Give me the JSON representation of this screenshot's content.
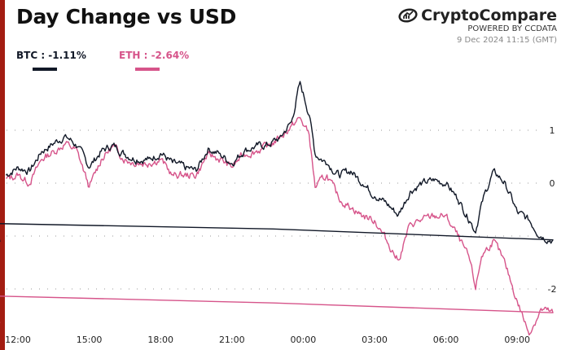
{
  "title": "Day Change vs USD",
  "brand": {
    "name": "CryptoCompare",
    "sub": "POWERED BY CCDATA",
    "date": "9 Dec 2024 11:15 (GMT)",
    "logo_icon": "chart-in-oval-icon"
  },
  "colors": {
    "accent": "#a31d12",
    "btc": "#111827",
    "eth": "#d6548a"
  },
  "legend": [
    {
      "label": "BTC : -1.11%",
      "color": "#111827"
    },
    {
      "label": "ETH : -2.64%",
      "color": "#d6548a"
    }
  ],
  "chart_data": {
    "type": "line",
    "xlabel": "",
    "ylabel": "",
    "x_ticks": [
      "12:00",
      "15:00",
      "18:00",
      "21:00",
      "00:00",
      "03:00",
      "06:00",
      "09:00"
    ],
    "y_ticks": [
      1,
      0,
      -1,
      -2
    ],
    "y_tick_labels": [
      "1",
      "0",
      "",
      "-2"
    ],
    "ylim": [
      -3,
      2
    ],
    "grid": "horizontal dotted",
    "y_axis_position": "right",
    "x": [
      "11:30",
      "12:00",
      "12:30",
      "13:00",
      "13:30",
      "14:00",
      "14:30",
      "15:00",
      "15:30",
      "16:00",
      "16:30",
      "17:00",
      "17:30",
      "18:00",
      "18:30",
      "19:00",
      "19:30",
      "20:00",
      "20:30",
      "21:00",
      "21:30",
      "22:00",
      "22:30",
      "23:00",
      "23:30",
      "23:52",
      "00:15",
      "00:30",
      "01:00",
      "01:30",
      "02:00",
      "02:30",
      "03:00",
      "03:30",
      "04:00",
      "04:30",
      "05:00",
      "05:30",
      "06:00",
      "06:30",
      "07:00",
      "07:15",
      "07:30",
      "08:00",
      "08:30",
      "09:00",
      "09:30",
      "10:00",
      "10:30",
      "11:00",
      "11:15"
    ],
    "series": [
      {
        "name": "BTC",
        "values": [
          0.15,
          0.3,
          0.23,
          0.6,
          0.75,
          0.9,
          0.7,
          0.3,
          0.6,
          0.72,
          0.55,
          0.45,
          0.45,
          0.57,
          0.38,
          0.3,
          0.23,
          0.66,
          0.55,
          0.38,
          0.6,
          0.7,
          0.72,
          0.85,
          1.15,
          1.9,
          1.3,
          0.55,
          0.38,
          0.15,
          0.23,
          0,
          -0.23,
          -0.38,
          -0.6,
          -0.15,
          0,
          0.05,
          0,
          -0.3,
          -0.7,
          -0.92,
          -0.38,
          0.23,
          0,
          -0.55,
          -0.7,
          -1.0,
          -1.08,
          -0.77,
          -1.11
        ]
      },
      {
        "name": "ETH",
        "values": [
          0.08,
          0.15,
          0,
          0.45,
          0.6,
          0.75,
          0.6,
          -0.08,
          0.45,
          0.7,
          0.45,
          0.38,
          0.38,
          0.45,
          0.15,
          0.15,
          0.15,
          0.55,
          0.45,
          0.3,
          0.55,
          0.6,
          0.7,
          0.85,
          1.08,
          1.23,
          0.92,
          -0.08,
          0.15,
          -0.3,
          -0.46,
          -0.62,
          -0.7,
          -1.08,
          -1.46,
          -0.77,
          -0.7,
          -0.62,
          -0.62,
          -1.0,
          -1.46,
          -2.0,
          -1.38,
          -1.08,
          -1.54,
          -2.23,
          -2.85,
          -2.38,
          -2.46,
          -2.15,
          -2.64
        ]
      }
    ]
  }
}
